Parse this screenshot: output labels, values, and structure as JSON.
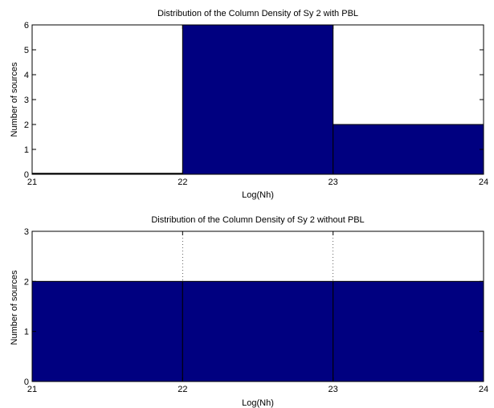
{
  "chart_data": [
    {
      "type": "bar",
      "title": "Distribution of the Column Density of Sy 2 with PBL",
      "xlabel": "Log(Nh)",
      "ylabel": "Number of sources",
      "xlim": [
        21,
        24
      ],
      "ylim": [
        0,
        6
      ],
      "xticks": [
        "21",
        "22",
        "23",
        "24"
      ],
      "yticks": [
        "0",
        "1",
        "2",
        "3",
        "4",
        "5",
        "6"
      ],
      "bins": [
        [
          21,
          22
        ],
        [
          22,
          23
        ],
        [
          23,
          24
        ]
      ],
      "values": [
        0,
        6,
        2
      ],
      "grid": false,
      "color": "#000080"
    },
    {
      "type": "bar",
      "title": "Distribution of the Column Density of Sy 2 without PBL",
      "xlabel": "Log(Nh)",
      "ylabel": "Number of sources",
      "xlim": [
        21,
        24
      ],
      "ylim": [
        0,
        3
      ],
      "xticks": [
        "21",
        "22",
        "23",
        "24"
      ],
      "yticks": [
        "0",
        "1",
        "2",
        "3"
      ],
      "bins": [
        [
          21,
          22
        ],
        [
          22,
          23
        ],
        [
          23,
          24
        ]
      ],
      "values": [
        2,
        2,
        2
      ],
      "grid": false,
      "color": "#000080"
    }
  ]
}
